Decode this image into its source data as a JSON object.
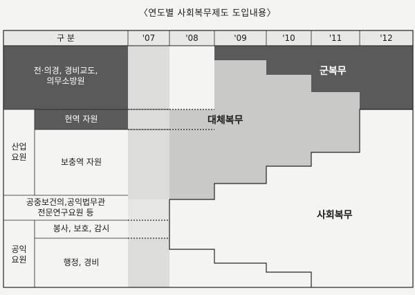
{
  "caption": "〈연도별 사회복무제도 도입내용〉",
  "header": {
    "category_label": "구  분",
    "years": [
      "'07",
      "'08",
      "'09",
      "'10",
      "'11",
      "'12"
    ]
  },
  "rows": {
    "military_row": "전·의경, 경비교도,\n의무소방원",
    "industry_group": "산업\n요원",
    "active_duty": "현역 자원",
    "supplementary": "보충역 자원",
    "public_health": "공중보건의,공익법무관\n전문연구요원 등",
    "public_group": "공익\n요원",
    "welfare": "봉사, 보호, 감시",
    "admin": "행정, 경비"
  },
  "regions": {
    "military_service": "군복무",
    "alternative_service": "대체복무",
    "social_service": "사회복무"
  },
  "colors": {
    "dark": "#5a5a5a",
    "mid": "#c9c9c7",
    "light": "#f4f4f2",
    "header": "#e8e8e6"
  }
}
